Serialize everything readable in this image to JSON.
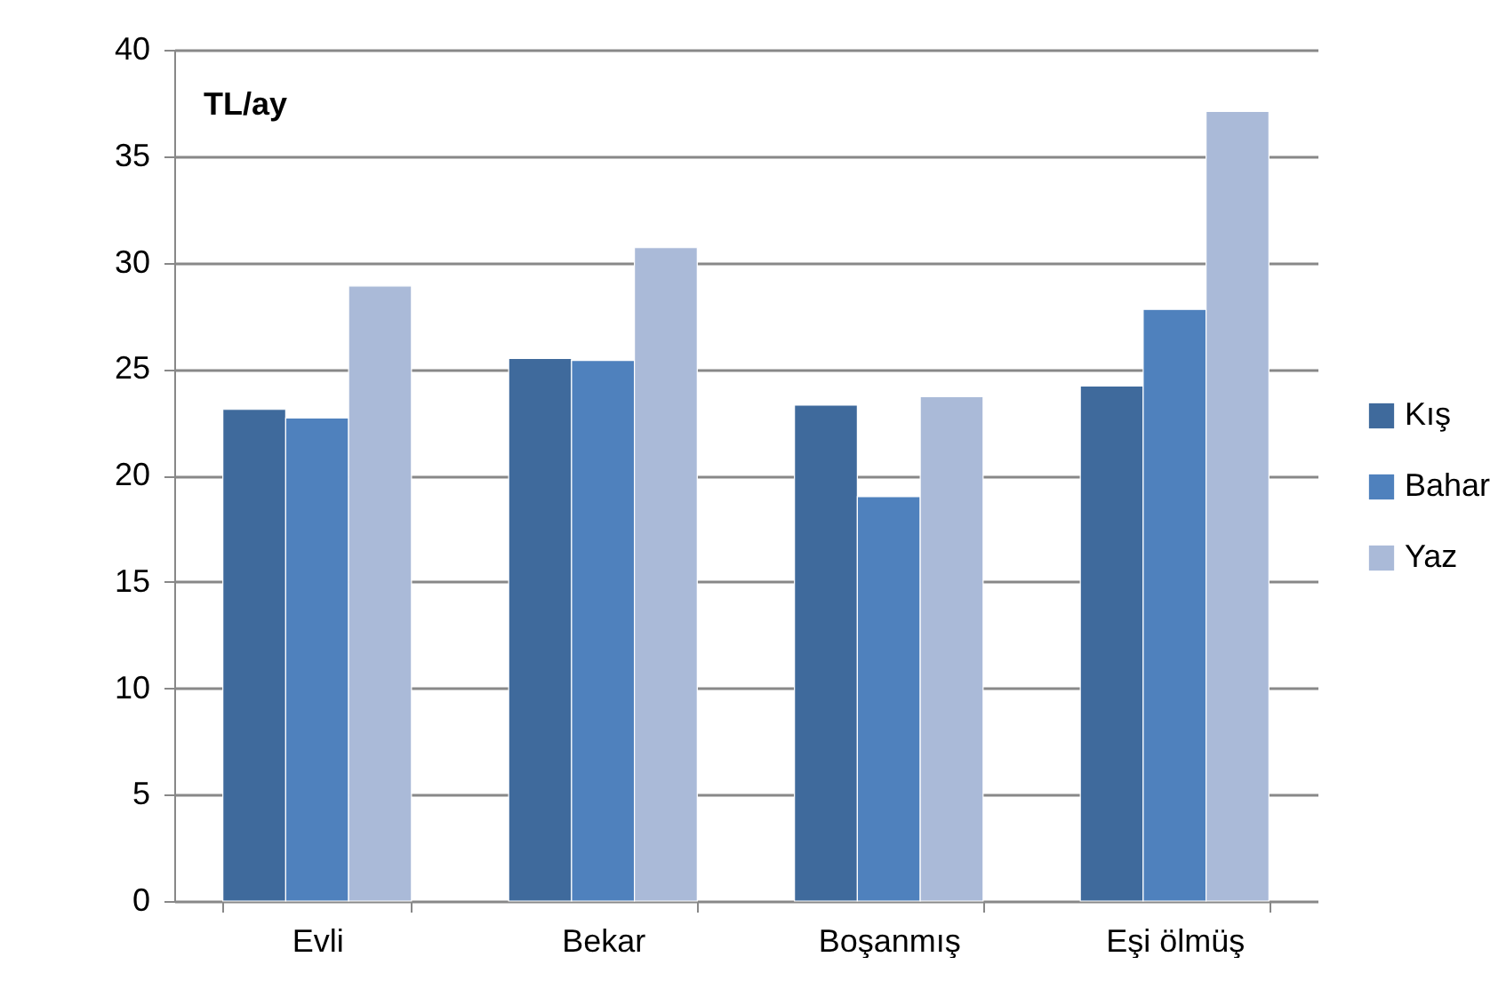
{
  "chart_data": {
    "type": "bar",
    "ylabel": "TL/ay",
    "categories": [
      "Evli",
      "Bekar",
      "Boşanmış",
      "Eşi ölmüş"
    ],
    "series": [
      {
        "name": "Kış",
        "color": "#3f6a9c",
        "values": [
          23.1,
          25.5,
          23.3,
          24.2
        ]
      },
      {
        "name": "Bahar",
        "color": "#4f81bd",
        "values": [
          22.7,
          25.4,
          19.0,
          27.8
        ]
      },
      {
        "name": "Yaz",
        "color": "#aabad8",
        "values": [
          28.9,
          30.7,
          23.7,
          37.1
        ]
      }
    ],
    "ylim": [
      0,
      40
    ],
    "yticks": [
      0,
      5,
      10,
      15,
      20,
      25,
      30,
      35,
      40
    ],
    "grid": "y",
    "legend": "right"
  }
}
